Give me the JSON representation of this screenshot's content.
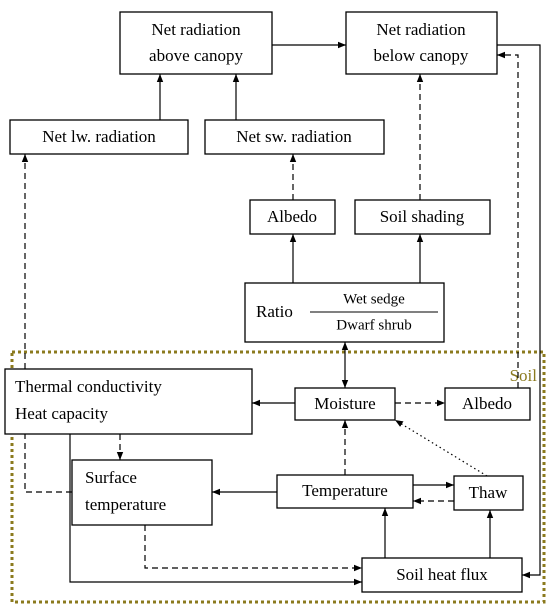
{
  "nodes": [
    {
      "lines": [
        "Net radiation",
        "above canopy"
      ]
    },
    {
      "lines": [
        "Net radiation",
        "below canopy"
      ]
    },
    {
      "lines": [
        "Net lw. radiation"
      ]
    },
    {
      "lines": [
        "Net sw. radiation"
      ]
    },
    {
      "lines": [
        "Albedo"
      ]
    },
    {
      "lines": [
        "Soil shading"
      ]
    },
    {
      "label": "Ratio",
      "numerator": "Wet sedge",
      "denominator": "Dwarf shrub"
    },
    {
      "lines": [
        "Thermal conductivity",
        "Heat capacity"
      ]
    },
    {
      "lines": [
        "Moisture"
      ]
    },
    {
      "lines": [
        "Albedo"
      ]
    },
    {
      "lines": [
        "Surface",
        "temperature"
      ]
    },
    {
      "lines": [
        "Temperature"
      ]
    },
    {
      "lines": [
        "Thaw"
      ]
    },
    {
      "lines": [
        "Soil heat flux"
      ]
    }
  ],
  "region_label": "Soil"
}
